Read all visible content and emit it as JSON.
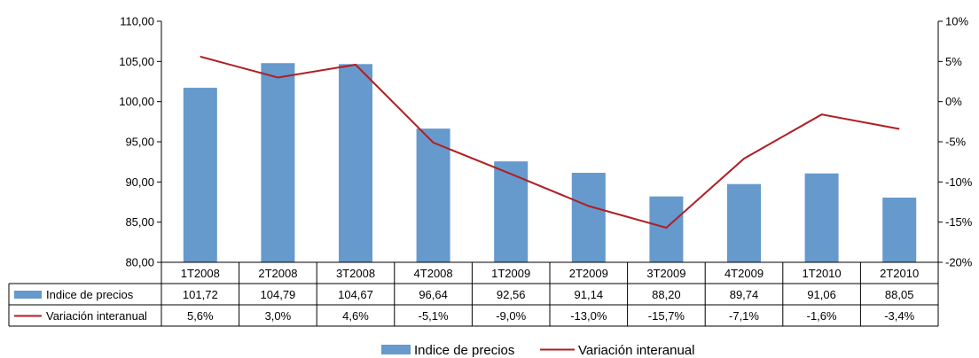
{
  "chart_data": {
    "type": "bar",
    "categories": [
      "1T2008",
      "2T2008",
      "3T2008",
      "4T2008",
      "1T2009",
      "2T2009",
      "3T2009",
      "4T2009",
      "1T2010",
      "2T2010"
    ],
    "series": [
      {
        "name": "Indice de precios",
        "type": "bar",
        "axis": "left",
        "color": "#6699CC",
        "values": [
          101.72,
          104.79,
          104.67,
          96.64,
          92.56,
          91.14,
          88.2,
          89.74,
          91.06,
          88.05
        ],
        "labels": [
          "101,72",
          "104,79",
          "104,67",
          "96,64",
          "92,56",
          "91,14",
          "88,20",
          "89,74",
          "91,06",
          "88,05"
        ]
      },
      {
        "name": "Variación interanual",
        "type": "line",
        "axis": "right",
        "color": "#B01E22",
        "values": [
          5.6,
          3.0,
          4.6,
          -5.1,
          -9.0,
          -13.0,
          -15.7,
          -7.1,
          -1.6,
          -3.4
        ],
        "labels": [
          "5,6%",
          "3,0%",
          "4,6%",
          "-5,1%",
          "-9,0%",
          "-13,0%",
          "-15,7%",
          "-7,1%",
          "-1,6%",
          "-3,4%"
        ]
      }
    ],
    "y_left": {
      "ylim": [
        80,
        110
      ],
      "ticks": [
        110,
        105,
        100,
        95,
        90,
        85,
        80
      ],
      "tick_labels": [
        "110,00",
        "105,00",
        "100,00",
        "95,00",
        "90,00",
        "85,00",
        "80,00"
      ]
    },
    "y_right": {
      "ylim": [
        -20,
        10
      ],
      "ticks": [
        10,
        5,
        0,
        -5,
        -10,
        -15,
        -20
      ],
      "tick_labels": [
        "10%",
        "5%",
        "0%",
        "-5%",
        "-10%",
        "-15%",
        "-20%"
      ]
    },
    "grid": false,
    "data_table": true,
    "legend_position": "bottom"
  }
}
